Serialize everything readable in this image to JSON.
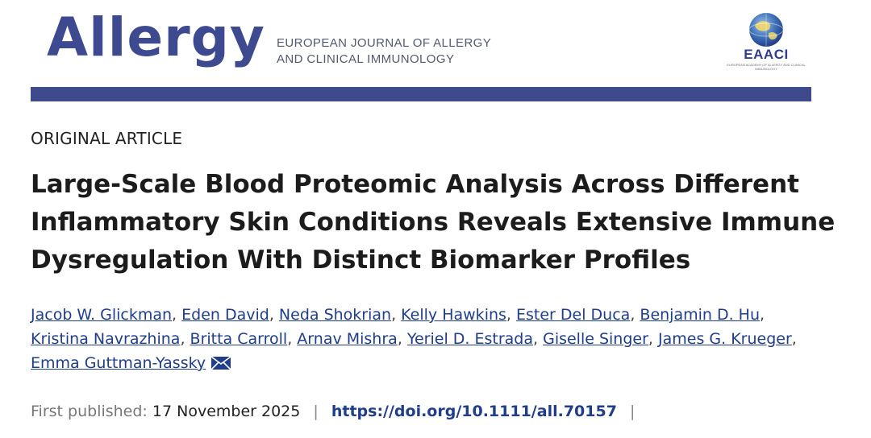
{
  "journal": {
    "name": "Allergy",
    "subtitle_line1": "EUROPEAN JOURNAL OF ALLERGY",
    "subtitle_line2": "AND CLINICAL IMMUNOLOGY",
    "society": "EAACI",
    "society_small": "EUROPEAN ACADEMY OF ALLERGY AND CLINICAL IMMUNOLOGY",
    "brand_color": "#3f4a8c"
  },
  "article": {
    "type": "ORIGINAL ARTICLE",
    "title": "Large-Scale Blood Proteomic Analysis Across Different Inflammatory Skin Conditions Reveals Extensive Immune Dysregulation With Distinct Biomarker Profiles",
    "authors": [
      "Jacob W. Glickman",
      "Eden David",
      "Neda Shokrian",
      "Kelly Hawkins",
      "Ester Del Duca",
      "Benjamin D. Hu",
      "Kristina Navrazhina",
      "Britta Carroll",
      "Arnav Mishra",
      "Yeriel D. Estrada",
      "Giselle Singer",
      "James G. Krueger",
      "Emma Guttman-Yassky"
    ],
    "first_published_label": "First published:",
    "first_published_date": "17 November 2025",
    "separator": "|",
    "doi": "https://doi.org/10.1111/all.70157",
    "contact_icon": "envelope-icon"
  }
}
